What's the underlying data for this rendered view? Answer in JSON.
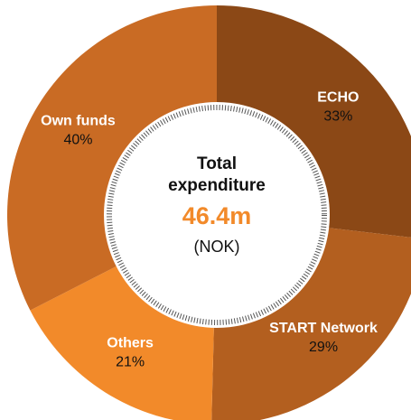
{
  "chart_data": {
    "type": "pie",
    "categories": [
      "ECHO",
      "START Network",
      "Others",
      "Own funds"
    ],
    "values": [
      33,
      29,
      21,
      40
    ],
    "value_labels": [
      "33%",
      "29%",
      "21%",
      "40%"
    ],
    "colors": [
      "#8b4816",
      "#b35f1f",
      "#f28a2a",
      "#c96b24"
    ],
    "center_title": "Total expenditure",
    "center_value": "46.4m",
    "center_unit": "(NOK)"
  }
}
